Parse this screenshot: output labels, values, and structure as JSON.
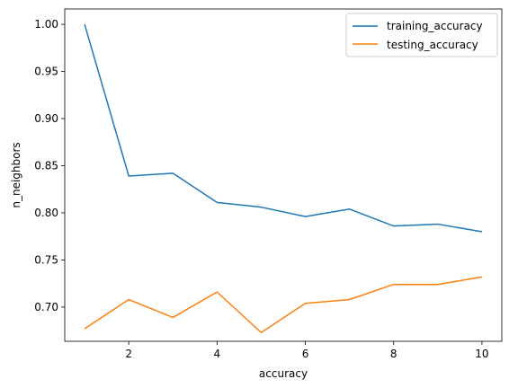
{
  "chart_data": {
    "type": "line",
    "xlabel": "accuracy",
    "ylabel": "n_neighbors",
    "x": [
      1,
      2,
      3,
      4,
      5,
      6,
      7,
      8,
      9,
      10
    ],
    "series": [
      {
        "name": "training_accuracy",
        "color": "#1f77b4",
        "values": [
          1.0,
          0.839,
          0.842,
          0.811,
          0.806,
          0.796,
          0.804,
          0.786,
          0.788,
          0.78
        ]
      },
      {
        "name": "testing_accuracy",
        "color": "#ff7f0e",
        "values": [
          0.677,
          0.708,
          0.689,
          0.716,
          0.673,
          0.704,
          0.708,
          0.724,
          0.724,
          0.732
        ]
      }
    ],
    "xlim": [
      0.55,
      10.45
    ],
    "ylim": [
      0.6637,
      1.0163
    ],
    "xticks": [
      2,
      4,
      6,
      8,
      10
    ],
    "xtick_labels": [
      "2",
      "4",
      "6",
      "8",
      "10"
    ],
    "yticks": [
      0.7,
      0.75,
      0.8,
      0.85,
      0.9,
      0.95,
      1.0
    ],
    "ytick_labels": [
      "0.70",
      "0.75",
      "0.80",
      "0.85",
      "0.90",
      "0.95",
      "1.00"
    ],
    "grid": false,
    "legend_position": "upper right"
  }
}
